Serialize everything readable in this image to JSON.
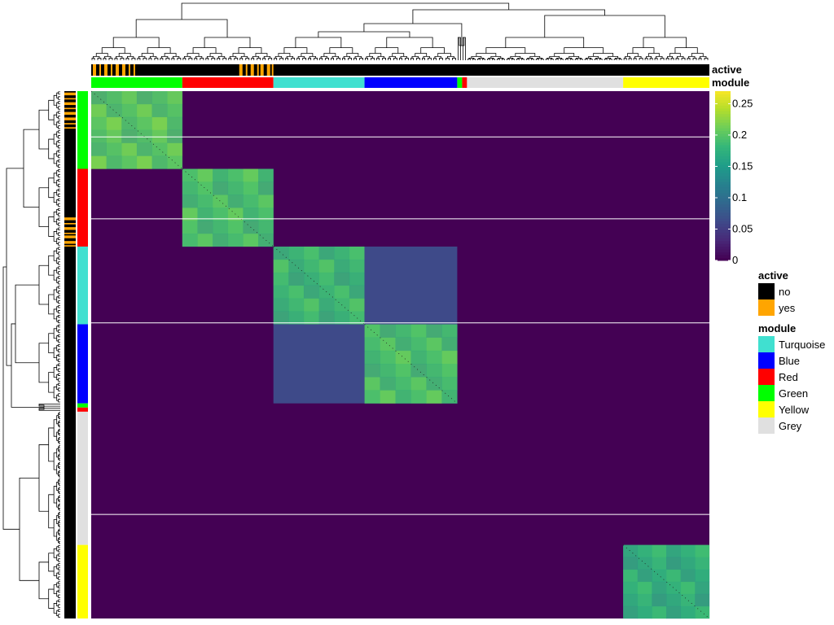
{
  "chart_data": {
    "type": "heatmap",
    "title": "",
    "xlabel": "",
    "ylabel": "",
    "n_samples": 380,
    "annotations": [
      {
        "name": "active",
        "label": "active"
      },
      {
        "name": "module",
        "label": "module"
      }
    ],
    "module_order": [
      {
        "module": "Green",
        "start": 0,
        "end": 56
      },
      {
        "module": "Red",
        "start": 56,
        "end": 112
      },
      {
        "module": "Turquoise",
        "start": 112,
        "end": 168
      },
      {
        "module": "Blue",
        "start": 168,
        "end": 225
      },
      {
        "module": "Green",
        "start": 225,
        "end": 228
      },
      {
        "module": "Red",
        "start": 228,
        "end": 231
      },
      {
        "module": "Grey",
        "start": 231,
        "end": 327
      },
      {
        "module": "Yellow",
        "start": 327,
        "end": 380
      }
    ],
    "active_yes_ranges": [
      [
        1,
        3
      ],
      [
        5,
        6
      ],
      [
        8,
        10
      ],
      [
        12,
        13
      ],
      [
        15,
        17
      ],
      [
        19,
        21
      ],
      [
        23,
        24
      ],
      [
        26,
        27
      ],
      [
        91,
        93
      ],
      [
        95,
        96
      ],
      [
        98,
        100
      ],
      [
        102,
        103
      ],
      [
        104,
        106
      ],
      [
        108,
        110
      ],
      [
        111,
        112
      ]
    ],
    "colorbar": {
      "min": 0,
      "max": 0.27,
      "ticks": [
        0,
        0.05,
        0.1,
        0.15,
        0.2,
        0.25
      ],
      "tick_labels": [
        "0",
        "0.05",
        "0.1",
        "0.15",
        "0.2",
        "0.25"
      ],
      "palette": "viridis"
    },
    "block_values": [
      {
        "rows": [
          0,
          56
        ],
        "cols": [
          0,
          56
        ],
        "value": 0.22
      },
      {
        "rows": [
          56,
          112
        ],
        "cols": [
          56,
          112
        ],
        "value": 0.21
      },
      {
        "rows": [
          112,
          168
        ],
        "cols": [
          112,
          168
        ],
        "value": 0.2
      },
      {
        "rows": [
          168,
          225
        ],
        "cols": [
          168,
          225
        ],
        "value": 0.21
      },
      {
        "rows": [
          327,
          380
        ],
        "cols": [
          327,
          380
        ],
        "value": 0.19
      },
      {
        "rows": [
          112,
          168
        ],
        "cols": [
          168,
          225
        ],
        "value": 0.06
      },
      {
        "rows": [
          168,
          225
        ],
        "cols": [
          112,
          168
        ],
        "value": 0.06
      }
    ],
    "row_splits": [
      33,
      92,
      167,
      305
    ],
    "legends": [
      {
        "title": "active",
        "entries": [
          {
            "label": "no",
            "color": "#000000"
          },
          {
            "label": "yes",
            "color": "#FFA500"
          }
        ]
      },
      {
        "title": "module",
        "entries": [
          {
            "label": "Turquoise",
            "color": "#40E0D0"
          },
          {
            "label": "Blue",
            "color": "#0000FF"
          },
          {
            "label": "Red",
            "color": "#FF0000"
          },
          {
            "label": "Green",
            "color": "#00FF00"
          },
          {
            "label": "Yellow",
            "color": "#FFFF00"
          },
          {
            "label": "Grey",
            "color": "#E0E0E0"
          }
        ]
      }
    ],
    "colors": {
      "Turquoise": "#40E0D0",
      "Blue": "#0000FF",
      "Red": "#FF0000",
      "Green": "#00FF00",
      "Yellow": "#FFFF00",
      "Grey": "#E0E0E0",
      "active_no": "#000000",
      "active_yes": "#FFA500"
    },
    "grid": false,
    "legend_position": "right"
  }
}
